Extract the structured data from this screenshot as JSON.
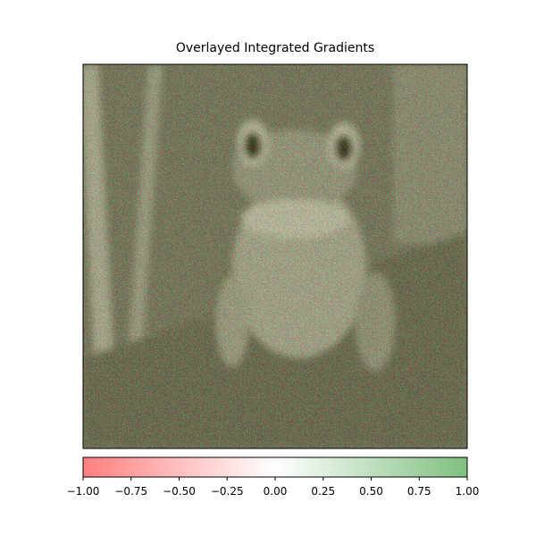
{
  "chart_data": {
    "type": "image",
    "title": "Overlayed Integrated Gradients",
    "colorbar": {
      "colors": [
        "#ff7f7f",
        "#ffffff",
        "#7fbf7f"
      ],
      "lim": [
        -1,
        1
      ],
      "ticks": [
        {
          "value": -1,
          "label": "−1.00"
        },
        {
          "value": -0.75,
          "label": "−0.75"
        },
        {
          "value": -0.5,
          "label": "−0.50"
        },
        {
          "value": -0.25,
          "label": "−0.25"
        },
        {
          "value": 0,
          "label": "0.00"
        },
        {
          "value": 0.25,
          "label": "0.25"
        },
        {
          "value": 0.5,
          "label": "0.50"
        },
        {
          "value": 0.75,
          "label": "0.75"
        },
        {
          "value": 1,
          "label": "1.00"
        }
      ]
    }
  }
}
